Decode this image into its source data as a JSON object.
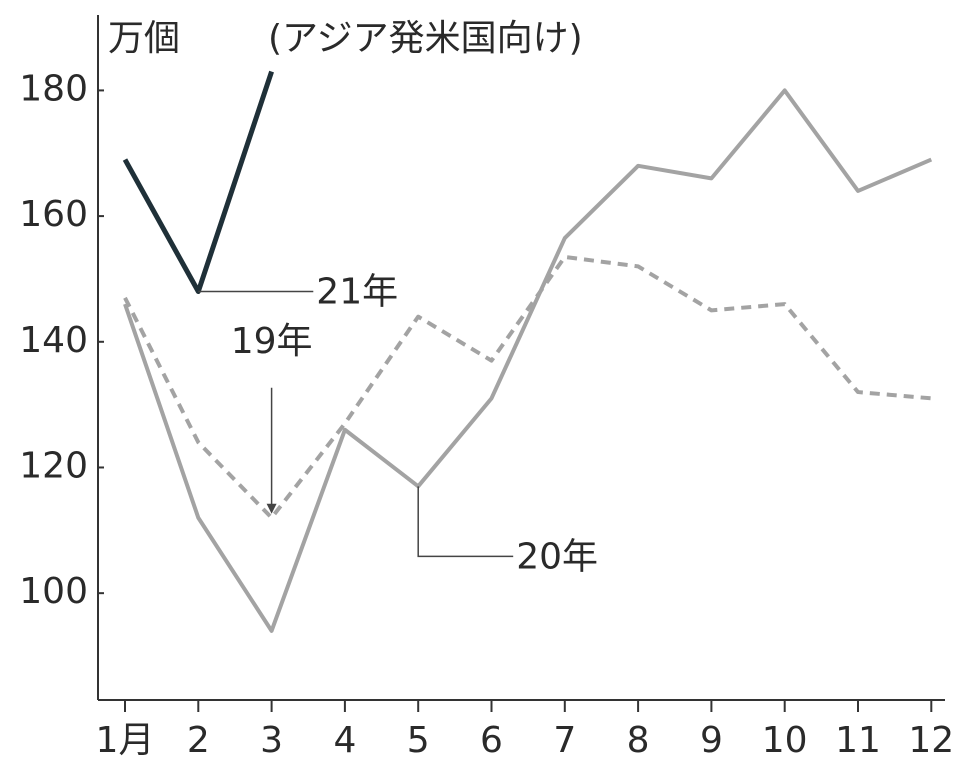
{
  "chart_data": {
    "type": "line",
    "unit": "万個",
    "title": "(アジア発米国向け)",
    "categories": [
      "1月",
      "2",
      "3",
      "4",
      "5",
      "6",
      "7",
      "8",
      "9",
      "10",
      "11",
      "12"
    ],
    "series": [
      {
        "name": "20年",
        "color": "#a3a3a3",
        "dashed": false,
        "values": [
          146,
          112,
          94,
          126,
          117,
          131,
          156.5,
          168,
          166,
          180,
          164,
          169
        ]
      },
      {
        "name": "19年",
        "color": "#a3a3a3",
        "dashed": true,
        "values": [
          147,
          124,
          112,
          127,
          144,
          137,
          153.5,
          152,
          145,
          146,
          132,
          131
        ]
      },
      {
        "name": "21年",
        "color": "#1f3038",
        "dashed": false,
        "values": [
          169,
          148,
          183,
          null,
          null,
          null,
          null,
          null,
          null,
          null,
          null,
          null
        ]
      }
    ],
    "ylim": [
      83,
      192
    ],
    "yticks": [
      100,
      120,
      140,
      160,
      180
    ],
    "grid": false
  }
}
